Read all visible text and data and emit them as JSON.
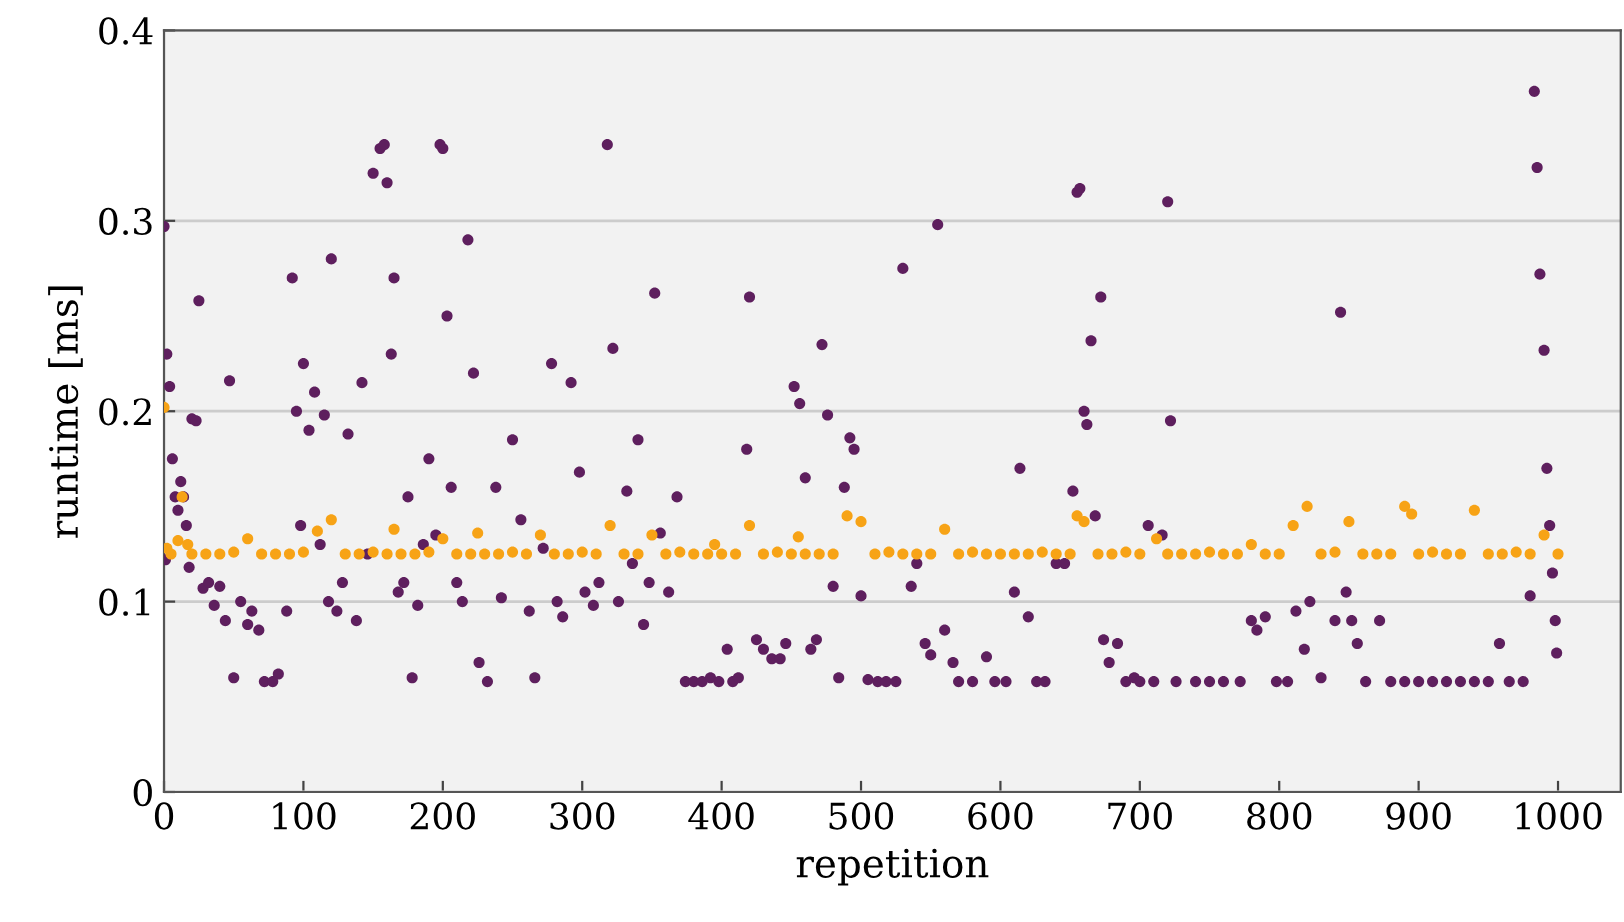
{
  "chart_data": {
    "type": "scatter",
    "xlabel": "repetition",
    "ylabel": "runtime [ms]",
    "xlim": [
      0,
      1045
    ],
    "ylim": [
      0,
      0.4
    ],
    "xticks": [
      0,
      100,
      200,
      300,
      400,
      500,
      600,
      700,
      800,
      900,
      1000
    ],
    "yticks": [
      0,
      0.1,
      0.2,
      0.3,
      0.4
    ],
    "grid": "y",
    "marker": "circle",
    "series": [
      {
        "color": "#5e1f5e",
        "x": [
          0,
          1,
          2,
          4,
          6,
          8,
          10,
          12,
          14,
          16,
          18,
          20,
          23,
          25,
          28,
          32,
          36,
          40,
          44,
          47,
          50,
          55,
          60,
          63,
          68,
          72,
          78,
          82,
          88,
          92,
          95,
          98,
          100,
          104,
          108,
          112,
          115,
          118,
          120,
          124,
          128,
          132,
          138,
          142,
          146,
          150,
          155,
          158,
          160,
          163,
          165,
          168,
          172,
          175,
          178,
          182,
          186,
          190,
          195,
          198,
          200,
          203,
          206,
          210,
          214,
          218,
          222,
          226,
          232,
          238,
          242,
          250,
          256,
          262,
          266,
          272,
          278,
          282,
          286,
          292,
          298,
          302,
          308,
          312,
          318,
          322,
          326,
          332,
          336,
          340,
          344,
          348,
          352,
          356,
          362,
          368,
          374,
          380,
          386,
          392,
          398,
          404,
          408,
          412,
          418,
          420,
          425,
          430,
          436,
          442,
          446,
          452,
          456,
          460,
          464,
          468,
          472,
          476,
          480,
          484,
          488,
          492,
          495,
          500,
          505,
          512,
          518,
          525,
          530,
          536,
          540,
          546,
          550,
          555,
          560,
          566,
          570,
          580,
          590,
          596,
          604,
          610,
          614,
          620,
          626,
          632,
          640,
          646,
          652,
          655,
          657,
          660,
          662,
          665,
          668,
          672,
          674,
          678,
          684,
          690,
          696,
          700,
          706,
          710,
          716,
          720,
          722,
          726,
          740,
          750,
          760,
          772,
          780,
          784,
          790,
          798,
          806,
          812,
          818,
          822,
          830,
          840,
          844,
          848,
          852,
          856,
          862,
          872,
          880,
          890,
          900,
          910,
          920,
          930,
          940,
          950,
          958,
          965,
          975,
          980,
          983,
          985,
          987,
          990,
          992,
          994,
          996,
          998,
          999
        ],
        "values": [
          0.297,
          0.122,
          0.23,
          0.213,
          0.175,
          0.155,
          0.148,
          0.163,
          0.155,
          0.14,
          0.118,
          0.196,
          0.195,
          0.258,
          0.107,
          0.11,
          0.098,
          0.108,
          0.09,
          0.216,
          0.06,
          0.1,
          0.088,
          0.095,
          0.085,
          0.058,
          0.058,
          0.062,
          0.095,
          0.27,
          0.2,
          0.14,
          0.225,
          0.19,
          0.21,
          0.13,
          0.198,
          0.1,
          0.28,
          0.095,
          0.11,
          0.188,
          0.09,
          0.215,
          0.125,
          0.325,
          0.338,
          0.34,
          0.32,
          0.23,
          0.27,
          0.105,
          0.11,
          0.155,
          0.06,
          0.098,
          0.13,
          0.175,
          0.135,
          0.34,
          0.338,
          0.25,
          0.16,
          0.11,
          0.1,
          0.29,
          0.22,
          0.068,
          0.058,
          0.16,
          0.102,
          0.185,
          0.143,
          0.095,
          0.06,
          0.128,
          0.225,
          0.1,
          0.092,
          0.215,
          0.168,
          0.105,
          0.098,
          0.11,
          0.34,
          0.233,
          0.1,
          0.158,
          0.12,
          0.185,
          0.088,
          0.11,
          0.262,
          0.136,
          0.105,
          0.155,
          0.058,
          0.058,
          0.058,
          0.06,
          0.058,
          0.075,
          0.058,
          0.06,
          0.18,
          0.26,
          0.08,
          0.075,
          0.07,
          0.07,
          0.078,
          0.213,
          0.204,
          0.165,
          0.075,
          0.08,
          0.235,
          0.198,
          0.108,
          0.06,
          0.16,
          0.186,
          0.18,
          0.103,
          0.059,
          0.058,
          0.058,
          0.058,
          0.275,
          0.108,
          0.12,
          0.078,
          0.072,
          0.298,
          0.085,
          0.068,
          0.058,
          0.058,
          0.071,
          0.058,
          0.058,
          0.105,
          0.17,
          0.092,
          0.058,
          0.058,
          0.12,
          0.12,
          0.158,
          0.315,
          0.317,
          0.2,
          0.193,
          0.237,
          0.145,
          0.26,
          0.08,
          0.068,
          0.078,
          0.058,
          0.06,
          0.058,
          0.14,
          0.058,
          0.135,
          0.31,
          0.195,
          0.058,
          0.058,
          0.058,
          0.058,
          0.058,
          0.09,
          0.085,
          0.092,
          0.058,
          0.058,
          0.095,
          0.075,
          0.1,
          0.06,
          0.09,
          0.252,
          0.105,
          0.09,
          0.078,
          0.058,
          0.09,
          0.058,
          0.058,
          0.058,
          0.058,
          0.058,
          0.058,
          0.058,
          0.058,
          0.078,
          0.058,
          0.058,
          0.103,
          0.368,
          0.328,
          0.272,
          0.232,
          0.17,
          0.14,
          0.115,
          0.09,
          0.073
        ]
      },
      {
        "color": "#f7a316",
        "x": [
          0,
          2,
          5,
          10,
          13,
          17,
          20,
          30,
          40,
          50,
          60,
          70,
          80,
          90,
          100,
          110,
          120,
          130,
          140,
          150,
          160,
          165,
          170,
          180,
          190,
          200,
          210,
          220,
          225,
          230,
          240,
          250,
          260,
          270,
          280,
          290,
          300,
          310,
          320,
          330,
          340,
          350,
          360,
          370,
          380,
          390,
          395,
          400,
          410,
          420,
          430,
          440,
          450,
          455,
          460,
          470,
          480,
          490,
          500,
          510,
          520,
          530,
          540,
          550,
          560,
          570,
          580,
          590,
          600,
          610,
          620,
          630,
          640,
          650,
          655,
          660,
          670,
          680,
          690,
          700,
          712,
          720,
          730,
          740,
          750,
          760,
          770,
          780,
          790,
          800,
          810,
          820,
          830,
          840,
          850,
          860,
          870,
          880,
          890,
          895,
          900,
          910,
          920,
          930,
          940,
          950,
          960,
          970,
          980,
          990,
          1000
        ],
        "values": [
          0.202,
          0.128,
          0.125,
          0.132,
          0.155,
          0.13,
          0.125,
          0.125,
          0.125,
          0.126,
          0.133,
          0.125,
          0.125,
          0.125,
          0.126,
          0.137,
          0.143,
          0.125,
          0.125,
          0.126,
          0.125,
          0.138,
          0.125,
          0.125,
          0.126,
          0.133,
          0.125,
          0.125,
          0.136,
          0.125,
          0.125,
          0.126,
          0.125,
          0.135,
          0.125,
          0.125,
          0.126,
          0.125,
          0.14,
          0.125,
          0.125,
          0.135,
          0.125,
          0.126,
          0.125,
          0.125,
          0.13,
          0.125,
          0.125,
          0.14,
          0.125,
          0.126,
          0.125,
          0.134,
          0.125,
          0.125,
          0.125,
          0.145,
          0.142,
          0.125,
          0.126,
          0.125,
          0.125,
          0.125,
          0.138,
          0.125,
          0.126,
          0.125,
          0.125,
          0.125,
          0.125,
          0.126,
          0.125,
          0.125,
          0.145,
          0.142,
          0.125,
          0.125,
          0.126,
          0.125,
          0.133,
          0.125,
          0.125,
          0.125,
          0.126,
          0.125,
          0.125,
          0.13,
          0.125,
          0.125,
          0.14,
          0.15,
          0.125,
          0.126,
          0.142,
          0.125,
          0.125,
          0.125,
          0.15,
          0.146,
          0.125,
          0.126,
          0.125,
          0.125,
          0.148,
          0.125,
          0.125,
          0.126,
          0.125,
          0.135,
          0.125
        ]
      }
    ]
  }
}
